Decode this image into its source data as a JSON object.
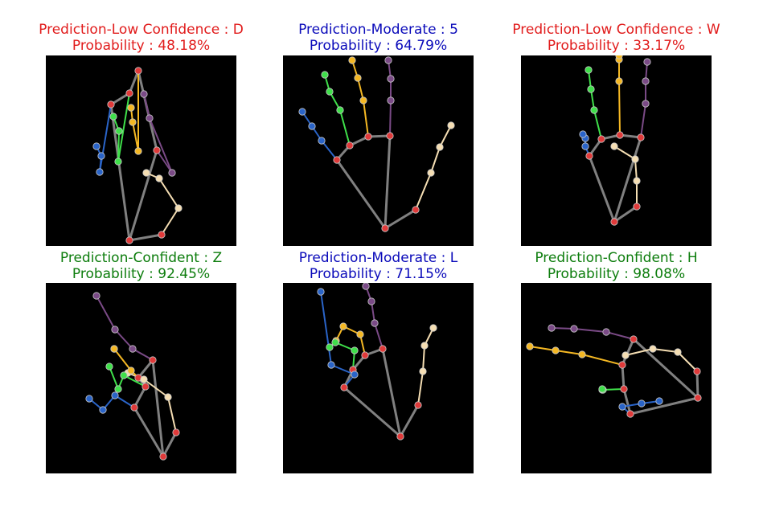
{
  "colors": {
    "red": "#e11b1b",
    "blue": "#0a0aba",
    "green": "#0d7d0d",
    "palm": "#808080",
    "joint": "#e03a3a",
    "thumb": "#f5deb3",
    "index": "#7a4a86",
    "middle": "#f5b823",
    "ring": "#3fe04a",
    "pinky": "#2a64c8"
  },
  "panels": [
    {
      "prediction": "Prediction-Low Confidence : D",
      "probability": "Probability : 48.18%",
      "color": "#e11b1b",
      "landmarks": [
        [
          104,
          230
        ],
        [
          144,
          223
        ],
        [
          165,
          190
        ],
        [
          141,
          153
        ],
        [
          125,
          146
        ],
        [
          138,
          118
        ],
        [
          157,
          146
        ],
        [
          129,
          78
        ],
        [
          122,
          48
        ],
        [
          115,
          19
        ],
        [
          115,
          119
        ],
        [
          108,
          83
        ],
        [
          106,
          65
        ],
        [
          104,
          47
        ],
        [
          90,
          132
        ],
        [
          91,
          94
        ],
        [
          84,
          76
        ],
        [
          81,
          61
        ],
        [
          67,
          145
        ],
        [
          69,
          125
        ],
        [
          63,
          113
        ],
        [
          58,
          101
        ]
      ]
    },
    {
      "prediction": "Prediction-Moderate : 5",
      "probability": "Probability : 64.79%",
      "color": "#0a0aba",
      "landmarks": [
        [
          127,
          215
        ],
        [
          165,
          192
        ],
        [
          184,
          146
        ],
        [
          195,
          114
        ],
        [
          209,
          87
        ],
        [
          133,
          100
        ],
        [
          134,
          56
        ],
        [
          134,
          29
        ],
        [
          131,
          6
        ],
        [
          106,
          101
        ],
        [
          100,
          56
        ],
        [
          93,
          28
        ],
        [
          86,
          6
        ],
        [
          83,
          112
        ],
        [
          71,
          68
        ],
        [
          58,
          45
        ],
        [
          52,
          24
        ],
        [
          67,
          130
        ],
        [
          48,
          106
        ],
        [
          36,
          88
        ],
        [
          24,
          70
        ]
      ]
    },
    {
      "prediction": "Prediction-Low Confidence : W",
      "probability": "Probability : 33.17%",
      "color": "#e11b1b",
      "landmarks": [
        [
          116,
          207
        ],
        [
          144,
          188
        ],
        [
          144,
          156
        ],
        [
          142,
          129
        ],
        [
          116,
          113
        ],
        [
          149,
          102
        ],
        [
          155,
          60
        ],
        [
          155,
          32
        ],
        [
          157,
          8
        ],
        [
          123,
          99
        ],
        [
          122,
          32
        ],
        [
          122,
          5
        ],
        [
          122,
          -6
        ],
        [
          100,
          104
        ],
        [
          91,
          68
        ],
        [
          87,
          42
        ],
        [
          84,
          18
        ],
        [
          85,
          125
        ],
        [
          80,
          113
        ],
        [
          80,
          103
        ],
        [
          77,
          98
        ]
      ]
    },
    {
      "prediction": "Prediction-Confident : Z",
      "probability": "Probability : 92.45%",
      "color": "#0d7d0d",
      "landmarks": [
        [
          146,
          216
        ],
        [
          162,
          186
        ],
        [
          152,
          142
        ],
        [
          122,
          120
        ],
        [
          102,
          112
        ],
        [
          133,
          96
        ],
        [
          108,
          82
        ],
        [
          86,
          58
        ],
        [
          63,
          16
        ],
        [
          115,
          118
        ],
        [
          106,
          109
        ],
        [
          85,
          82
        ],
        [
          85,
          82
        ],
        [
          124,
          129
        ],
        [
          97,
          115
        ],
        [
          90,
          132
        ],
        [
          79,
          104
        ],
        [
          110,
          155
        ],
        [
          86,
          140
        ],
        [
          71,
          158
        ],
        [
          54,
          144
        ]
      ]
    },
    {
      "prediction": "Prediction-Moderate : L",
      "probability": "Probability : 71.15%",
      "color": "#0a0aba",
      "landmarks": [
        [
          146,
          191
        ],
        [
          168,
          152
        ],
        [
          174,
          110
        ],
        [
          176,
          78
        ],
        [
          187,
          56
        ],
        [
          124,
          82
        ],
        [
          114,
          50
        ],
        [
          110,
          23
        ],
        [
          103,
          4
        ],
        [
          102,
          90
        ],
        [
          96,
          64
        ],
        [
          75,
          54
        ],
        [
          66,
          72
        ],
        [
          87,
          108
        ],
        [
          89,
          84
        ],
        [
          65,
          74
        ],
        [
          58,
          80
        ],
        [
          76,
          130
        ],
        [
          89,
          114
        ],
        [
          60,
          102
        ],
        [
          47,
          11
        ]
      ]
    },
    {
      "prediction": "Prediction-Confident : H",
      "probability": "Probability : 98.08%",
      "color": "#0d7d0d",
      "landmarks": [
        [
          220,
          143
        ],
        [
          219,
          110
        ],
        [
          195,
          86
        ],
        [
          164,
          82
        ],
        [
          130,
          90
        ],
        [
          140,
          70
        ],
        [
          106,
          61
        ],
        [
          66,
          57
        ],
        [
          38,
          56
        ],
        [
          126,
          102
        ],
        [
          76,
          89
        ],
        [
          43,
          84
        ],
        [
          11,
          79
        ],
        [
          128,
          132
        ],
        [
          101,
          133
        ],
        [
          102,
          133
        ],
        [
          101,
          132
        ],
        [
          136,
          163
        ],
        [
          126,
          154
        ],
        [
          150,
          150
        ],
        [
          172,
          147
        ]
      ]
    }
  ]
}
